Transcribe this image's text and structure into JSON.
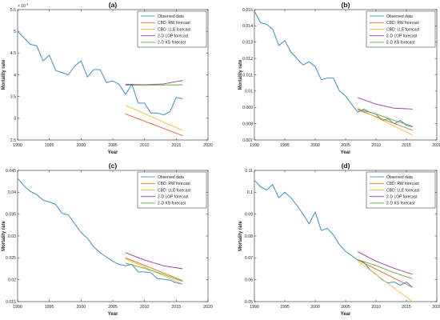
{
  "colors": {
    "observed": "#3d8fd1",
    "cbd_rw": "#e8622c",
    "cbd_lle": "#f2c12e",
    "lop": "#9b3fa6",
    "ks": "#6aab3a"
  },
  "chart_data": [
    {
      "type": "line",
      "title": "(a)",
      "xlabel": "Year",
      "ylabel": "Mortality rate",
      "exponent_label": "× 10",
      "exponent_power": "-3",
      "xlim": [
        1990,
        2020
      ],
      "ylim": [
        2.5,
        5.5
      ],
      "xticks": [
        "1990",
        "1995",
        "2000",
        "2005",
        "2010",
        "2015",
        "2020"
      ],
      "yticks": [
        "2.5",
        "3",
        "3.5",
        "4",
        "4.5",
        "5",
        "5.5"
      ],
      "legend_position": "top-right",
      "series": [
        {
          "name": "Observed data",
          "color_key": "observed",
          "x": [
            1990,
            1991,
            1992,
            1993,
            1994,
            1995,
            1996,
            1997,
            1998,
            1999,
            2000,
            2001,
            2002,
            2003,
            2004,
            2005,
            2006,
            2007,
            2008,
            2009,
            2010,
            2011,
            2012,
            2013,
            2014,
            2015,
            2016
          ],
          "y": [
            5.0,
            4.85,
            4.7,
            4.67,
            4.32,
            4.45,
            4.1,
            4.05,
            4.0,
            4.2,
            4.32,
            3.95,
            4.12,
            4.12,
            3.82,
            3.86,
            3.78,
            3.55,
            3.78,
            3.35,
            3.35,
            3.12,
            3.12,
            3.08,
            3.15,
            3.48,
            3.45
          ]
        },
        {
          "name": "CBD: RW forecast",
          "color_key": "cbd_rw",
          "x": [
            2007,
            2016
          ],
          "y": [
            3.1,
            2.6
          ]
        },
        {
          "name": "CBD: LLE forecast",
          "color_key": "cbd_lle",
          "x": [
            2007,
            2016
          ],
          "y": [
            3.3,
            2.72
          ]
        },
        {
          "name": "2-D LOP forecast",
          "color_key": "lop",
          "x": [
            2007,
            2010,
            2013,
            2016
          ],
          "y": [
            3.78,
            3.77,
            3.79,
            3.87
          ]
        },
        {
          "name": "2-D KS forecast",
          "color_key": "ks",
          "x": [
            2007,
            2016
          ],
          "y": [
            3.76,
            3.77
          ]
        }
      ]
    },
    {
      "type": "line",
      "title": "(b)",
      "xlabel": "Year",
      "ylabel": "Mortality rate",
      "xlim": [
        1990,
        2020
      ],
      "ylim": [
        0.007,
        0.015
      ],
      "xticks": [
        "1990",
        "1995",
        "2000",
        "2005",
        "2010",
        "2015",
        "2020"
      ],
      "yticks": [
        "0.007",
        "0.008",
        "0.009",
        "0.01",
        "0.011",
        "0.012",
        "0.013",
        "0.014",
        "0.015"
      ],
      "legend_position": "top-right",
      "series": [
        {
          "name": "Observed data",
          "color_key": "observed",
          "x": [
            1990,
            1991,
            1992,
            1993,
            1994,
            1995,
            1996,
            1997,
            1998,
            1999,
            2000,
            2001,
            2002,
            2003,
            2004,
            2005,
            2006,
            2007,
            2008,
            2009,
            2010,
            2011,
            2012,
            2013,
            2014,
            2015,
            2016
          ],
          "y": [
            0.0149,
            0.0142,
            0.0141,
            0.0138,
            0.0128,
            0.0131,
            0.0124,
            0.012,
            0.0116,
            0.0118,
            0.0115,
            0.0107,
            0.0108,
            0.0108,
            0.01,
            0.0097,
            0.0092,
            0.0087,
            0.0089,
            0.0087,
            0.0086,
            0.0082,
            0.0083,
            0.008,
            0.0082,
            0.0079,
            0.0078
          ]
        },
        {
          "name": "CBD: RW forecast",
          "color_key": "cbd_rw",
          "x": [
            2007,
            2016
          ],
          "y": [
            0.00885,
            0.0076
          ]
        },
        {
          "name": "CBD: LLE forecast",
          "color_key": "cbd_lle",
          "x": [
            2007,
            2016
          ],
          "y": [
            0.00895,
            0.0073
          ]
        },
        {
          "name": "2-D LOP forecast",
          "color_key": "lop",
          "x": [
            2007,
            2010,
            2013,
            2016
          ],
          "y": [
            0.0096,
            0.0092,
            0.00895,
            0.0089
          ]
        },
        {
          "name": "2-D KS forecast",
          "color_key": "ks",
          "x": [
            2007,
            2010,
            2013,
            2016
          ],
          "y": [
            0.0089,
            0.0086,
            0.0082,
            0.00785
          ]
        }
      ]
    },
    {
      "type": "line",
      "title": "(c)",
      "xlabel": "Year",
      "ylabel": "Mortality rate",
      "xlim": [
        1990,
        2020
      ],
      "ylim": [
        0.015,
        0.045
      ],
      "xticks": [
        "1990",
        "1995",
        "2000",
        "2005",
        "2010",
        "2015",
        "2020"
      ],
      "yticks": [
        "0.015",
        "0.02",
        "0.025",
        "0.03",
        "0.035",
        "0.04",
        "0.045"
      ],
      "legend_position": "top-right",
      "series": [
        {
          "name": "Observed data",
          "color_key": "observed",
          "x": [
            1990,
            1991,
            1992,
            1993,
            1994,
            1995,
            1996,
            1997,
            1998,
            1999,
            2000,
            2001,
            2002,
            2003,
            2004,
            2005,
            2006,
            2007,
            2008,
            2009,
            2010,
            2011,
            2012,
            2013,
            2014,
            2015,
            2016
          ],
          "y": [
            0.0432,
            0.0415,
            0.0402,
            0.0395,
            0.0382,
            0.0378,
            0.0372,
            0.0352,
            0.0348,
            0.0328,
            0.0308,
            0.0295,
            0.0275,
            0.0262,
            0.0252,
            0.0242,
            0.0235,
            0.0232,
            0.0235,
            0.0218,
            0.0218,
            0.0216,
            0.0203,
            0.0201,
            0.0199,
            0.0193,
            0.019
          ]
        },
        {
          "name": "CBD: RW forecast",
          "color_key": "cbd_rw",
          "x": [
            2007,
            2016
          ],
          "y": [
            0.025,
            0.0198
          ]
        },
        {
          "name": "CBD: LLE forecast",
          "color_key": "cbd_lle",
          "x": [
            2007,
            2016
          ],
          "y": [
            0.0248,
            0.019
          ]
        },
        {
          "name": "2-D LOP forecast",
          "color_key": "lop",
          "x": [
            2007,
            2010,
            2013,
            2016
          ],
          "y": [
            0.0262,
            0.0245,
            0.0232,
            0.0225
          ]
        },
        {
          "name": "2-D KS forecast",
          "color_key": "ks",
          "x": [
            2007,
            2010,
            2013,
            2016
          ],
          "y": [
            0.0238,
            0.0226,
            0.0212,
            0.0196
          ]
        }
      ]
    },
    {
      "type": "line",
      "title": "(d)",
      "xlabel": "Year",
      "ylabel": "Mortality rate",
      "xlim": [
        1990,
        2020
      ],
      "ylim": [
        0.05,
        0.11
      ],
      "xticks": [
        "1990",
        "1995",
        "2000",
        "2005",
        "2010",
        "2015",
        "2020"
      ],
      "yticks": [
        "0.05",
        "0.06",
        "0.07",
        "0.08",
        "0.09",
        "0.1",
        "0.11"
      ],
      "legend_position": "top-right",
      "series": [
        {
          "name": "Observed data",
          "color_key": "observed",
          "x": [
            1990,
            1991,
            1992,
            1993,
            1994,
            1995,
            1996,
            1997,
            1998,
            1999,
            2000,
            2001,
            2002,
            2003,
            2004,
            2005,
            2006,
            2007,
            2008,
            2009,
            2010,
            2011,
            2012,
            2013,
            2014,
            2015,
            2016
          ],
          "y": [
            0.1055,
            0.1025,
            0.101,
            0.1035,
            0.0975,
            0.1,
            0.0975,
            0.094,
            0.09,
            0.0855,
            0.091,
            0.0825,
            0.0835,
            0.0805,
            0.076,
            0.073,
            0.071,
            0.069,
            0.068,
            0.0645,
            0.0625,
            0.06,
            0.0585,
            0.059,
            0.0575,
            0.059,
            0.0565
          ]
        },
        {
          "name": "CBD: RW forecast",
          "color_key": "cbd_rw",
          "x": [
            2007,
            2016
          ],
          "y": [
            0.069,
            0.0565
          ]
        },
        {
          "name": "CBD: LLE forecast",
          "color_key": "cbd_lle",
          "x": [
            2007,
            2016
          ],
          "y": [
            0.0685,
            0.05
          ]
        },
        {
          "name": "2-D LOP forecast",
          "color_key": "lop",
          "x": [
            2007,
            2010,
            2013,
            2016
          ],
          "y": [
            0.0728,
            0.0685,
            0.0652,
            0.0625
          ]
        },
        {
          "name": "2-D KS forecast",
          "color_key": "ks",
          "x": [
            2007,
            2010,
            2013,
            2016
          ],
          "y": [
            0.0692,
            0.0665,
            0.0632,
            0.0605
          ]
        }
      ]
    }
  ]
}
